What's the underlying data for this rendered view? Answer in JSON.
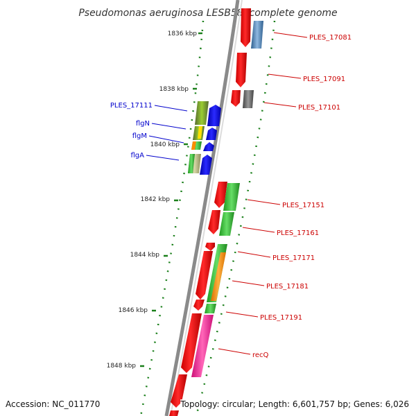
{
  "title": "Pseudomonas aeruginosa LESB58, complete genome",
  "footer": {
    "accession": "Accession: NC_011770",
    "topology": "Topology: circular; Length: 6,601,757 bp; Genes: 6,026"
  },
  "kbp_markers": [
    "1836 kbp",
    "1838 kbp",
    "1840 kbp",
    "1842 kbp",
    "1844 kbp",
    "1846 kbp",
    "1848 kbp"
  ],
  "left_gene_labels": [
    "PLES_17111",
    "flgN",
    "flgM",
    "flgA"
  ],
  "right_gene_labels": [
    "PLES_17081",
    "PLES_17091",
    "PLES_17101",
    "PLES_17151",
    "PLES_17161",
    "PLES_17171",
    "PLES_17181",
    "PLES_17191",
    "recQ"
  ],
  "colors": {
    "backbone": "#808080",
    "cds_forward": "#ff0000",
    "cds_reverse": "#ff0000",
    "left_label": "#0000cc",
    "right_label": "#cc0000",
    "gc_skew": "#1a7f1a",
    "blast_blue": "#0000ee",
    "blast_green": "#33cc33",
    "blast_olive": "#6b8e23",
    "blast_orange": "#ff8c00",
    "blast_magenta": "#ff1493",
    "blast_steel": "#4682b4",
    "blast_grey": "#555555"
  }
}
